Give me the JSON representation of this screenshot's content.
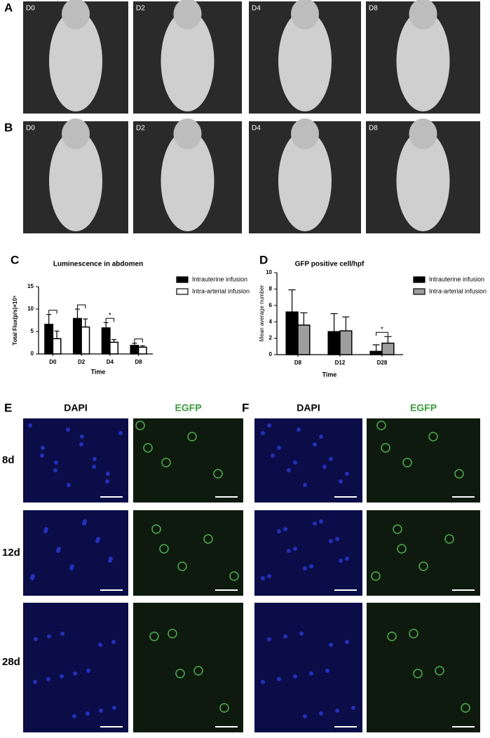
{
  "figure": {
    "A": {
      "letter": "A",
      "labels": [
        "D0",
        "D2",
        "D4",
        "D8"
      ]
    },
    "B": {
      "letter": "B",
      "labels": [
        "D0",
        "D2",
        "D4",
        "D8"
      ]
    },
    "E": {
      "letter": "E",
      "columns": [
        "DAPI",
        "EGFP"
      ],
      "rows": [
        "8d",
        "12d",
        "28d"
      ]
    },
    "F": {
      "letter": "F",
      "columns": [
        "DAPI",
        "EGFP"
      ]
    }
  },
  "chart_data": [
    {
      "type": "bar",
      "panel_label": "C",
      "title": "Luminescence in abdomen",
      "y_label": "Total Flux(p/s)×10⁵",
      "x_label": "Time",
      "categories": [
        "D0",
        "D2",
        "D4",
        "D8"
      ],
      "series": [
        {
          "name": "Intrauterine infusion",
          "color": "#000000",
          "values": [
            6.6,
            7.9,
            5.8,
            1.9
          ],
          "errors": [
            2.2,
            2.1,
            1.2,
            0.5
          ]
        },
        {
          "name": "Intra-arterial infusion",
          "color": "#ffffff",
          "values": [
            3.4,
            6.0,
            2.6,
            1.5
          ],
          "errors": [
            1.7,
            1.8,
            0.6,
            0.3
          ]
        }
      ],
      "ylim": [
        0,
        15
      ],
      "yticks": [
        0,
        5,
        10,
        15
      ],
      "grid": false,
      "legend": "right",
      "brackets": [
        "D0",
        "D2",
        "D4",
        "D8"
      ],
      "annotations": [
        {
          "text": "*",
          "x": "D4"
        }
      ]
    },
    {
      "type": "bar",
      "panel_label": "D",
      "title": "GFP positive cell/hpf",
      "y_label": "Mean average number",
      "x_label": "Time",
      "categories": [
        "D8",
        "D12",
        "D28"
      ],
      "series": [
        {
          "name": "Intrauterine infusion",
          "color": "#000000",
          "values": [
            5.2,
            2.8,
            0.4
          ],
          "errors": [
            2.7,
            2.2,
            0.8
          ]
        },
        {
          "name": "Intra-arterial infusion",
          "color": "#9e9e9e",
          "values": [
            3.6,
            2.9,
            1.4
          ],
          "errors": [
            1.5,
            1.7,
            0.8
          ]
        }
      ],
      "ylim": [
        0,
        10
      ],
      "yticks": [
        0,
        2,
        4,
        6,
        8,
        10
      ],
      "grid": false,
      "legend": "right",
      "brackets": [
        "D28"
      ],
      "annotations": [
        {
          "text": "*",
          "x": "D28"
        }
      ]
    }
  ]
}
